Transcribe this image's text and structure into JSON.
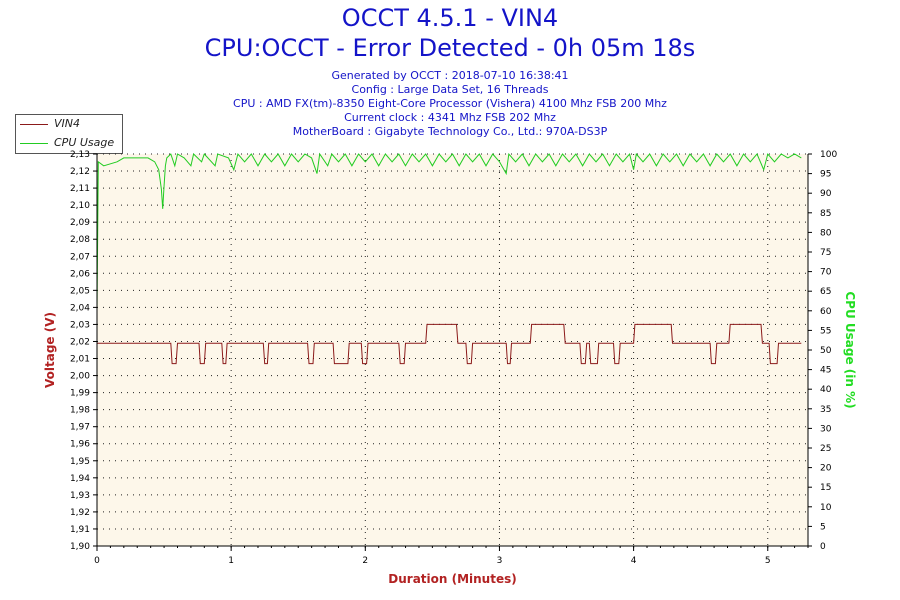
{
  "chart_data": {
    "type": "line",
    "title": "OCCT 4.5.1 - VIN4",
    "subtitle": "CPU:OCCT - Error Detected - 0h 05m 18s",
    "info_lines": [
      "Generated by OCCT : 2018-07-10 16:38:41",
      "Config : Large Data Set, 16 Threads",
      "CPU : AMD FX(tm)-8350 Eight-Core Processor (Vishera) 4100 Mhz FSB 200 Mhz",
      "Current clock : 4341 Mhz FSB 202 Mhz",
      "MotherBoard : Gigabyte Technology Co., Ltd.: 970A-DS3P"
    ],
    "xlabel": "Duration (Minutes)",
    "ylabel": "Voltage (V)",
    "y2label": "CPU Usage (in %)",
    "xlim": [
      0,
      5.3
    ],
    "ylim": [
      1.9,
      2.13
    ],
    "y2lim": [
      0,
      100
    ],
    "xticks": [
      0,
      1,
      2,
      3,
      4,
      5
    ],
    "yticks": [
      1.9,
      1.91,
      1.92,
      1.93,
      1.94,
      1.95,
      1.96,
      1.97,
      1.98,
      1.99,
      2.0,
      2.01,
      2.02,
      2.03,
      2.04,
      2.05,
      2.06,
      2.07,
      2.08,
      2.09,
      2.1,
      2.11,
      2.12,
      2.13
    ],
    "y2ticks": [
      0,
      5,
      10,
      15,
      20,
      25,
      30,
      35,
      40,
      45,
      50,
      55,
      60,
      65,
      70,
      75,
      80,
      85,
      90,
      95,
      100
    ],
    "ytick_labels": [
      "1,90",
      "1,91",
      "1,92",
      "1,93",
      "1,94",
      "1,95",
      "1,96",
      "1,97",
      "1,98",
      "1,99",
      "2,00",
      "2,01",
      "2,02",
      "2,03",
      "2,04",
      "2,05",
      "2,06",
      "2,07",
      "2,08",
      "2,09",
      "2,10",
      "2,11",
      "2,12",
      "2,13"
    ],
    "grid": true,
    "legend": "top-left",
    "series": [
      {
        "name": "VIN4",
        "color": "#8b1a1a",
        "axis": "left",
        "step": true,
        "points": [
          [
            0,
            2.019
          ],
          [
            0.55,
            2.019
          ],
          [
            0.56,
            2.007
          ],
          [
            0.59,
            2.007
          ],
          [
            0.6,
            2.019
          ],
          [
            0.76,
            2.019
          ],
          [
            0.77,
            2.007
          ],
          [
            0.8,
            2.007
          ],
          [
            0.81,
            2.019
          ],
          [
            0.93,
            2.019
          ],
          [
            0.94,
            2.007
          ],
          [
            0.96,
            2.007
          ],
          [
            0.97,
            2.019
          ],
          [
            1.24,
            2.019
          ],
          [
            1.25,
            2.007
          ],
          [
            1.27,
            2.007
          ],
          [
            1.28,
            2.019
          ],
          [
            1.57,
            2.019
          ],
          [
            1.58,
            2.007
          ],
          [
            1.61,
            2.007
          ],
          [
            1.62,
            2.019
          ],
          [
            1.76,
            2.019
          ],
          [
            1.77,
            2.007
          ],
          [
            1.87,
            2.007
          ],
          [
            1.88,
            2.019
          ],
          [
            1.97,
            2.019
          ],
          [
            1.98,
            2.007
          ],
          [
            2.01,
            2.007
          ],
          [
            2.02,
            2.019
          ],
          [
            2.25,
            2.019
          ],
          [
            2.26,
            2.007
          ],
          [
            2.29,
            2.007
          ],
          [
            2.3,
            2.019
          ],
          [
            2.45,
            2.019
          ],
          [
            2.46,
            2.03
          ],
          [
            2.68,
            2.03
          ],
          [
            2.69,
            2.019
          ],
          [
            2.75,
            2.019
          ],
          [
            2.76,
            2.007
          ],
          [
            2.79,
            2.007
          ],
          [
            2.8,
            2.019
          ],
          [
            3.05,
            2.019
          ],
          [
            3.06,
            2.007
          ],
          [
            3.08,
            2.007
          ],
          [
            3.09,
            2.019
          ],
          [
            3.23,
            2.019
          ],
          [
            3.24,
            2.03
          ],
          [
            3.48,
            2.03
          ],
          [
            3.49,
            2.019
          ],
          [
            3.6,
            2.019
          ],
          [
            3.61,
            2.007
          ],
          [
            3.64,
            2.007
          ],
          [
            3.65,
            2.019
          ],
          [
            3.67,
            2.019
          ],
          [
            3.68,
            2.007
          ],
          [
            3.73,
            2.007
          ],
          [
            3.74,
            2.019
          ],
          [
            3.85,
            2.019
          ],
          [
            3.86,
            2.007
          ],
          [
            3.89,
            2.007
          ],
          [
            3.9,
            2.019
          ],
          [
            4.0,
            2.019
          ],
          [
            4.01,
            2.03
          ],
          [
            4.28,
            2.03
          ],
          [
            4.29,
            2.019
          ],
          [
            4.57,
            2.019
          ],
          [
            4.58,
            2.007
          ],
          [
            4.61,
            2.007
          ],
          [
            4.62,
            2.019
          ],
          [
            4.71,
            2.019
          ],
          [
            4.72,
            2.03
          ],
          [
            4.95,
            2.03
          ],
          [
            4.96,
            2.019
          ],
          [
            5.01,
            2.019
          ],
          [
            5.02,
            2.007
          ],
          [
            5.07,
            2.007
          ],
          [
            5.08,
            2.019
          ],
          [
            5.25,
            2.019
          ]
        ]
      },
      {
        "name": "CPU Usage",
        "color": "#22cc22",
        "axis": "right",
        "step": false,
        "points": [
          [
            0,
            60
          ],
          [
            0.01,
            98
          ],
          [
            0.05,
            97
          ],
          [
            0.15,
            98
          ],
          [
            0.2,
            99
          ],
          [
            0.3,
            99
          ],
          [
            0.38,
            99
          ],
          [
            0.43,
            98
          ],
          [
            0.46,
            96
          ],
          [
            0.48,
            91
          ],
          [
            0.49,
            86
          ],
          [
            0.5,
            92
          ],
          [
            0.51,
            97
          ],
          [
            0.52,
            99
          ],
          [
            0.55,
            100
          ],
          [
            0.58,
            97
          ],
          [
            0.6,
            100
          ],
          [
            0.65,
            99
          ],
          [
            0.7,
            97
          ],
          [
            0.72,
            100
          ],
          [
            0.78,
            98
          ],
          [
            0.8,
            100
          ],
          [
            0.88,
            97
          ],
          [
            0.9,
            100
          ],
          [
            0.98,
            99
          ],
          [
            1.02,
            96
          ],
          [
            1.05,
            100
          ],
          [
            1.1,
            98
          ],
          [
            1.15,
            100
          ],
          [
            1.2,
            97
          ],
          [
            1.25,
            100
          ],
          [
            1.3,
            98
          ],
          [
            1.35,
            100
          ],
          [
            1.4,
            97
          ],
          [
            1.45,
            100
          ],
          [
            1.5,
            98
          ],
          [
            1.55,
            100
          ],
          [
            1.6,
            99
          ],
          [
            1.64,
            95
          ],
          [
            1.66,
            100
          ],
          [
            1.72,
            97
          ],
          [
            1.75,
            100
          ],
          [
            1.8,
            98
          ],
          [
            1.85,
            100
          ],
          [
            1.9,
            97
          ],
          [
            1.95,
            100
          ],
          [
            2.0,
            98
          ],
          [
            2.05,
            100
          ],
          [
            2.1,
            97
          ],
          [
            2.15,
            100
          ],
          [
            2.2,
            98
          ],
          [
            2.25,
            100
          ],
          [
            2.3,
            97
          ],
          [
            2.35,
            100
          ],
          [
            2.4,
            98
          ],
          [
            2.45,
            100
          ],
          [
            2.5,
            97
          ],
          [
            2.55,
            100
          ],
          [
            2.6,
            98
          ],
          [
            2.65,
            100
          ],
          [
            2.7,
            97
          ],
          [
            2.75,
            100
          ],
          [
            2.8,
            98
          ],
          [
            2.85,
            100
          ],
          [
            2.9,
            97
          ],
          [
            2.95,
            100
          ],
          [
            3.0,
            98
          ],
          [
            3.05,
            95
          ],
          [
            3.07,
            100
          ],
          [
            3.12,
            98
          ],
          [
            3.17,
            100
          ],
          [
            3.22,
            97
          ],
          [
            3.27,
            100
          ],
          [
            3.32,
            98
          ],
          [
            3.37,
            100
          ],
          [
            3.42,
            97
          ],
          [
            3.47,
            100
          ],
          [
            3.52,
            98
          ],
          [
            3.57,
            100
          ],
          [
            3.62,
            97
          ],
          [
            3.67,
            100
          ],
          [
            3.72,
            98
          ],
          [
            3.77,
            100
          ],
          [
            3.82,
            97
          ],
          [
            3.87,
            100
          ],
          [
            3.92,
            98
          ],
          [
            3.97,
            100
          ],
          [
            4.0,
            96
          ],
          [
            4.02,
            100
          ],
          [
            4.07,
            98
          ],
          [
            4.12,
            100
          ],
          [
            4.17,
            97
          ],
          [
            4.22,
            100
          ],
          [
            4.27,
            98
          ],
          [
            4.32,
            100
          ],
          [
            4.37,
            97
          ],
          [
            4.42,
            100
          ],
          [
            4.47,
            98
          ],
          [
            4.52,
            100
          ],
          [
            4.57,
            97
          ],
          [
            4.62,
            100
          ],
          [
            4.67,
            98
          ],
          [
            4.72,
            100
          ],
          [
            4.77,
            97
          ],
          [
            4.82,
            100
          ],
          [
            4.87,
            98
          ],
          [
            4.92,
            100
          ],
          [
            4.97,
            96
          ],
          [
            5.0,
            100
          ],
          [
            5.05,
            98
          ],
          [
            5.1,
            100
          ],
          [
            5.15,
            99
          ],
          [
            5.2,
            100
          ],
          [
            5.25,
            99
          ]
        ]
      }
    ]
  }
}
